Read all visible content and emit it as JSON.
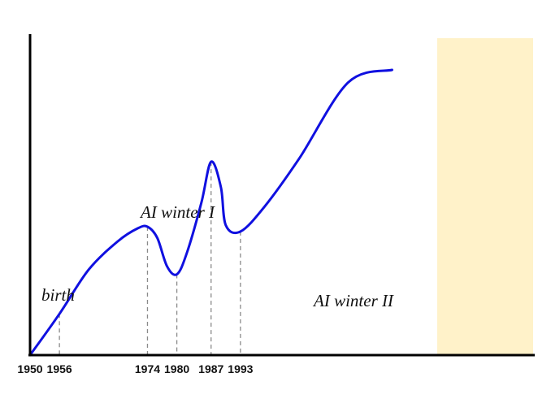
{
  "chart_data": {
    "type": "line",
    "title": "",
    "xlabel": "",
    "ylabel": "",
    "x_tick_labels": [
      "1950",
      "1956",
      "1974",
      "1980",
      "1987",
      "1993"
    ],
    "series": [
      {
        "color": "#1010e0",
        "points": [
          {
            "x": 1950,
            "y": 0.0
          },
          {
            "x": 1956,
            "y": 0.13
          },
          {
            "x": 1962,
            "y": 0.27
          },
          {
            "x": 1968,
            "y": 0.36
          },
          {
            "x": 1972,
            "y": 0.4
          },
          {
            "x": 1974,
            "y": 0.405
          },
          {
            "x": 1976,
            "y": 0.37
          },
          {
            "x": 1978,
            "y": 0.28
          },
          {
            "x": 1980,
            "y": 0.255
          },
          {
            "x": 1982,
            "y": 0.32
          },
          {
            "x": 1985,
            "y": 0.48
          },
          {
            "x": 1987,
            "y": 0.61
          },
          {
            "x": 1989,
            "y": 0.53
          },
          {
            "x": 1990,
            "y": 0.41
          },
          {
            "x": 1993,
            "y": 0.39
          },
          {
            "x": 1998,
            "y": 0.47
          },
          {
            "x": 2005,
            "y": 0.62
          },
          {
            "x": 2015,
            "y": 0.86
          },
          {
            "x": 2024,
            "y": 0.9
          }
        ]
      }
    ],
    "annotations": [
      {
        "text": "birth",
        "x": 1956
      },
      {
        "text": "AI winter I",
        "x": 1974
      },
      {
        "text": "AI winter II",
        "x": 1993
      }
    ],
    "dashed_guides_at": [
      1956,
      1974,
      1980,
      1987,
      1993
    ],
    "highlight_region": {
      "color": "#fff2c9"
    },
    "grid": false,
    "legend": "none"
  }
}
